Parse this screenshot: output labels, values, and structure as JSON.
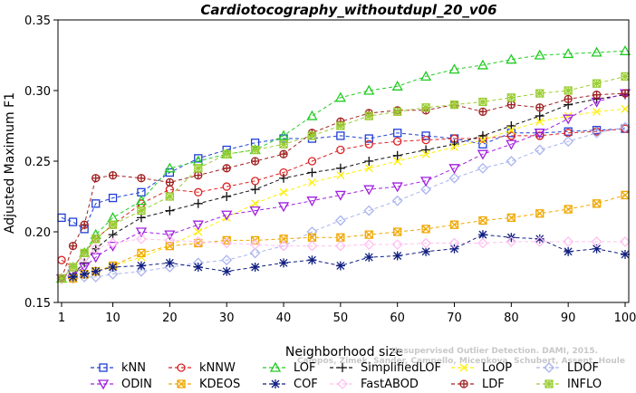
{
  "chart_data": {
    "type": "line",
    "title": "Cardiotocography_withoutdupl_20_v06",
    "xlabel": "Neighborhood size",
    "ylabel": "Adjusted Maximum F1",
    "xlim": [
      1,
      100
    ],
    "ylim": [
      0.15,
      0.35
    ],
    "x_ticks": [
      1,
      10,
      20,
      30,
      40,
      50,
      60,
      70,
      80,
      90,
      100
    ],
    "y_ticks": [
      0.15,
      0.2,
      0.25,
      0.3,
      0.35
    ],
    "x_tick_labels": [
      "1",
      "10",
      "20",
      "30",
      "40",
      "50",
      "60",
      "70",
      "80",
      "90",
      "100"
    ],
    "y_tick_labels": [
      "0.15",
      "0.20",
      "0.25",
      "0.30",
      "0.35"
    ],
    "grid": false,
    "legend_position": "bottom",
    "watermark_lines": [
      "Campos, Zimek, Sander, Campello, Micenkova, Schubert, Assent, Houle",
      "Unsupervised Outlier Detection. DAMI, 2015."
    ],
    "series": [
      {
        "name": "kNN",
        "color": "#1f3fd6",
        "marker": "square",
        "x": [
          1,
          3,
          5,
          7,
          10,
          15,
          20,
          25,
          30,
          35,
          40,
          45,
          50,
          55,
          60,
          65,
          70,
          75,
          80,
          85,
          90,
          95,
          100
        ],
        "y": [
          0.21,
          0.207,
          0.202,
          0.22,
          0.224,
          0.228,
          0.242,
          0.252,
          0.258,
          0.263,
          0.266,
          0.266,
          0.268,
          0.266,
          0.27,
          0.268,
          0.266,
          0.262,
          0.27,
          0.27,
          0.271,
          0.272,
          0.273
        ]
      },
      {
        "name": "kNNW",
        "color": "#dd2222",
        "marker": "circle",
        "x": [
          1,
          3,
          5,
          7,
          10,
          15,
          20,
          25,
          30,
          35,
          40,
          45,
          50,
          55,
          60,
          65,
          70,
          75,
          80,
          85,
          90,
          95,
          100
        ],
        "y": [
          0.18,
          0.175,
          0.185,
          0.195,
          0.205,
          0.22,
          0.23,
          0.228,
          0.232,
          0.236,
          0.242,
          0.25,
          0.258,
          0.262,
          0.264,
          0.265,
          0.266,
          0.266,
          0.268,
          0.268,
          0.27,
          0.271,
          0.273
        ]
      },
      {
        "name": "LOF",
        "color": "#22cc22",
        "marker": "triangle-up",
        "x": [
          1,
          3,
          5,
          7,
          10,
          15,
          20,
          25,
          30,
          35,
          40,
          45,
          50,
          55,
          60,
          65,
          70,
          75,
          80,
          85,
          90,
          95,
          100
        ],
        "y": [
          0.167,
          0.175,
          0.185,
          0.198,
          0.21,
          0.222,
          0.245,
          0.25,
          0.255,
          0.258,
          0.268,
          0.282,
          0.295,
          0.3,
          0.303,
          0.31,
          0.315,
          0.318,
          0.322,
          0.325,
          0.326,
          0.327,
          0.328
        ]
      },
      {
        "name": "SimplifiedLOF",
        "color": "#111111",
        "marker": "plus",
        "x": [
          1,
          3,
          5,
          7,
          10,
          15,
          20,
          25,
          30,
          35,
          40,
          45,
          50,
          55,
          60,
          65,
          70,
          75,
          80,
          85,
          90,
          95,
          100
        ],
        "y": [
          0.167,
          0.17,
          0.178,
          0.188,
          0.198,
          0.21,
          0.215,
          0.22,
          0.225,
          0.23,
          0.238,
          0.242,
          0.245,
          0.25,
          0.254,
          0.258,
          0.262,
          0.268,
          0.275,
          0.282,
          0.29,
          0.294,
          0.297
        ]
      },
      {
        "name": "LoOP",
        "color": "#ffee00",
        "marker": "cross",
        "x": [
          1,
          3,
          5,
          7,
          10,
          15,
          20,
          25,
          30,
          35,
          40,
          45,
          50,
          55,
          60,
          65,
          70,
          75,
          80,
          85,
          90,
          95,
          100
        ],
        "y": [
          0.167,
          0.167,
          0.17,
          0.172,
          0.176,
          0.182,
          0.19,
          0.2,
          0.21,
          0.22,
          0.228,
          0.235,
          0.24,
          0.245,
          0.25,
          0.255,
          0.26,
          0.265,
          0.272,
          0.278,
          0.282,
          0.285,
          0.287
        ]
      },
      {
        "name": "LDOF",
        "color": "#aab4ee",
        "marker": "diamond",
        "x": [
          1,
          3,
          5,
          7,
          10,
          15,
          20,
          25,
          30,
          35,
          40,
          45,
          50,
          55,
          60,
          65,
          70,
          75,
          80,
          85,
          90,
          95,
          100
        ],
        "y": [
          0.167,
          0.167,
          0.168,
          0.168,
          0.17,
          0.172,
          0.175,
          0.178,
          0.18,
          0.185,
          0.19,
          0.2,
          0.208,
          0.215,
          0.222,
          0.23,
          0.238,
          0.245,
          0.25,
          0.258,
          0.264,
          0.27,
          0.274
        ]
      },
      {
        "name": "ODIN",
        "color": "#a020e0",
        "marker": "triangle-down",
        "x": [
          1,
          3,
          5,
          7,
          10,
          15,
          20,
          25,
          30,
          35,
          40,
          45,
          50,
          55,
          60,
          65,
          70,
          75,
          80,
          85,
          90,
          95,
          100
        ],
        "y": [
          0.167,
          0.17,
          0.175,
          0.182,
          0.19,
          0.2,
          0.198,
          0.205,
          0.212,
          0.215,
          0.218,
          0.222,
          0.226,
          0.23,
          0.232,
          0.236,
          0.245,
          0.255,
          0.262,
          0.27,
          0.28,
          0.292,
          0.298
        ]
      },
      {
        "name": "KDEOS",
        "color": "#f0a800",
        "marker": "square-x",
        "x": [
          1,
          3,
          5,
          7,
          10,
          15,
          20,
          25,
          30,
          35,
          40,
          45,
          50,
          55,
          60,
          65,
          70,
          75,
          80,
          85,
          90,
          95,
          100
        ],
        "y": [
          0.167,
          0.167,
          0.17,
          0.172,
          0.176,
          0.185,
          0.19,
          0.192,
          0.194,
          0.194,
          0.195,
          0.196,
          0.196,
          0.198,
          0.2,
          0.202,
          0.205,
          0.208,
          0.21,
          0.213,
          0.216,
          0.22,
          0.226
        ]
      },
      {
        "name": "COF",
        "color": "#101f80",
        "marker": "star",
        "x": [
          1,
          3,
          5,
          7,
          10,
          15,
          20,
          25,
          30,
          35,
          40,
          45,
          50,
          55,
          60,
          65,
          70,
          75,
          80,
          85,
          90,
          95,
          100
        ],
        "y": [
          0.167,
          0.168,
          0.17,
          0.172,
          0.175,
          0.176,
          0.178,
          0.175,
          0.172,
          0.175,
          0.178,
          0.18,
          0.176,
          0.182,
          0.183,
          0.186,
          0.188,
          0.198,
          0.196,
          0.195,
          0.186,
          0.188,
          0.184
        ]
      },
      {
        "name": "FastABOD",
        "color": "#ffc0f0",
        "marker": "diamond",
        "x": [
          1,
          3,
          5,
          7,
          10,
          15,
          20,
          25,
          30,
          35,
          40,
          45,
          50,
          55,
          60,
          65,
          70,
          75,
          80,
          85,
          90,
          95,
          100
        ],
        "y": [
          0.167,
          0.175,
          0.182,
          0.188,
          0.192,
          0.195,
          0.194,
          0.193,
          0.192,
          0.191,
          0.19,
          0.19,
          0.19,
          0.191,
          0.191,
          0.192,
          0.192,
          0.192,
          0.193,
          0.193,
          0.193,
          0.193,
          0.193
        ]
      },
      {
        "name": "LDF",
        "color": "#a02020",
        "marker": "circle-plus",
        "x": [
          1,
          3,
          5,
          7,
          10,
          15,
          20,
          25,
          30,
          35,
          40,
          45,
          50,
          55,
          60,
          65,
          70,
          75,
          80,
          85,
          90,
          95,
          100
        ],
        "y": [
          0.167,
          0.19,
          0.205,
          0.238,
          0.24,
          0.238,
          0.235,
          0.24,
          0.245,
          0.25,
          0.255,
          0.27,
          0.278,
          0.284,
          0.286,
          0.286,
          0.29,
          0.285,
          0.29,
          0.288,
          0.294,
          0.297,
          0.298
        ]
      },
      {
        "name": "INFLO",
        "color": "#9acd32",
        "marker": "square-star",
        "x": [
          1,
          3,
          5,
          7,
          10,
          15,
          20,
          25,
          30,
          35,
          40,
          45,
          50,
          55,
          60,
          65,
          70,
          75,
          80,
          85,
          90,
          95,
          100
        ],
        "y": [
          0.167,
          0.175,
          0.185,
          0.195,
          0.205,
          0.215,
          0.225,
          0.245,
          0.255,
          0.258,
          0.262,
          0.268,
          0.275,
          0.282,
          0.285,
          0.288,
          0.29,
          0.292,
          0.295,
          0.298,
          0.3,
          0.305,
          0.31
        ]
      }
    ]
  }
}
